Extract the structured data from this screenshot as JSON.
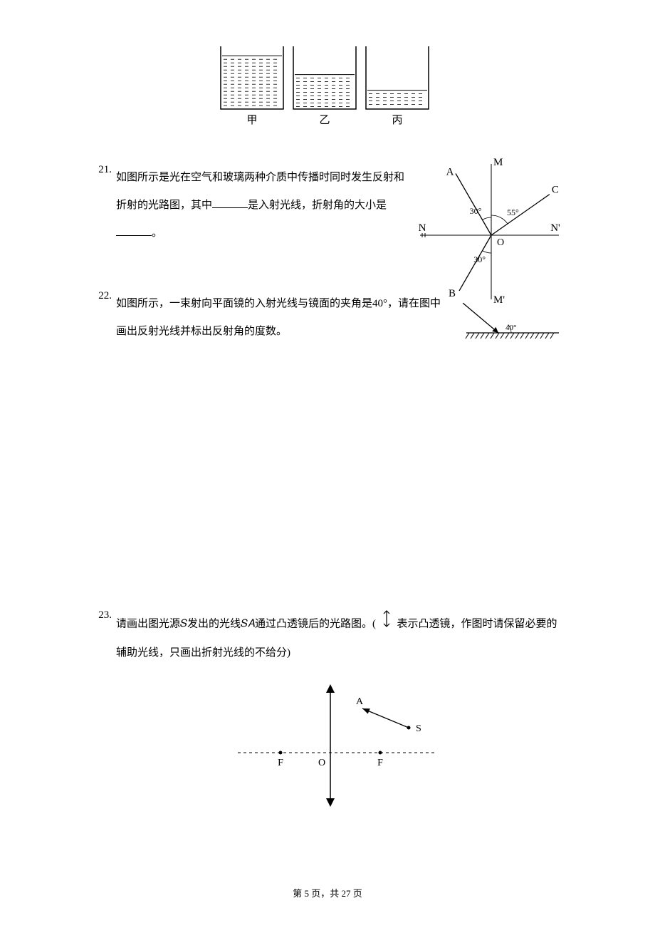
{
  "beakers": {
    "labels": [
      "甲",
      "乙",
      "丙"
    ],
    "levels": [
      0.85,
      0.55,
      0.3
    ],
    "width": 88,
    "height": 88,
    "gap": 14,
    "stroke": "#000000",
    "hatch_color": "#000000"
  },
  "q21": {
    "number": "21.",
    "text_parts": [
      "如图所示是光在空气和玻璃两种介质中传播时同时发生反射和折射的光路图，其中",
      "是入射光线，折射角的大小是",
      "。"
    ],
    "diagram": {
      "labels": {
        "A": "A",
        "M": "M",
        "C": "C",
        "N": "N",
        "N2": "N'",
        "O": "O",
        "B": "B",
        "M2": "M'"
      },
      "angles": {
        "a30": "30°",
        "a55": "55°",
        "b30": "30°"
      },
      "stroke": "#000000"
    }
  },
  "q22": {
    "number": "22.",
    "text": "如图所示，一束射向平面镜的入射光线与镜面的夹角是40°，请在图中画出反射光线并标出反射角的度数。",
    "diagram": {
      "angle_label": "40°",
      "stroke": "#000000"
    }
  },
  "q23": {
    "number": "23.",
    "text_parts": [
      "请画出图光源𝑆发出的光线𝑆𝐴通过凸透镜后的光路图。(",
      " 表示凸透镜，作图时请保留必要的辅助光线，只画出折射光线的不给分)"
    ],
    "diagram": {
      "labels": {
        "A": "A",
        "S": "S",
        "F1": "F",
        "F2": "F",
        "O": "O"
      },
      "stroke": "#000000"
    }
  },
  "footer": {
    "text_parts": [
      "第 ",
      " 页，共 ",
      " 页"
    ],
    "page": "5",
    "total": "27"
  }
}
